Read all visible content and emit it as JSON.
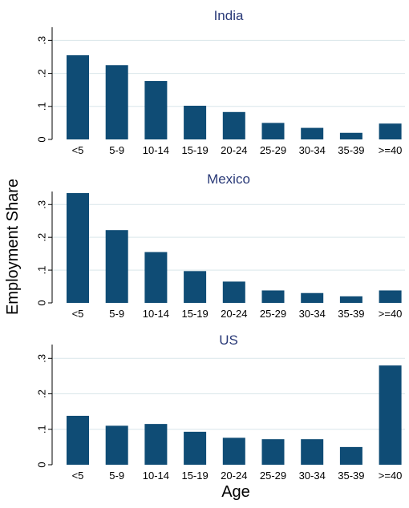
{
  "chart_data": {
    "type": "bar",
    "ylabel": "Employment Share",
    "xlabel": "Age",
    "categories": [
      "<5",
      "5-9",
      "10-14",
      "15-19",
      "20-24",
      "25-29",
      "30-34",
      "35-39",
      ">=40"
    ],
    "y_ticks": [
      0,
      0.1,
      0.2,
      0.3
    ],
    "y_tick_labels": [
      "0",
      ".1",
      ".2",
      ".3"
    ],
    "ylim": [
      0,
      0.33
    ],
    "grid": true,
    "bar_color": "#0f4c75",
    "panels": [
      {
        "title": "India",
        "values": [
          0.255,
          0.225,
          0.177,
          0.102,
          0.083,
          0.05,
          0.035,
          0.02,
          0.048
        ]
      },
      {
        "title": "Mexico",
        "values": [
          0.335,
          0.222,
          0.155,
          0.097,
          0.065,
          0.038,
          0.03,
          0.02,
          0.038
        ]
      },
      {
        "title": "US",
        "values": [
          0.138,
          0.11,
          0.115,
          0.093,
          0.076,
          0.072,
          0.072,
          0.05,
          0.28
        ]
      }
    ]
  }
}
